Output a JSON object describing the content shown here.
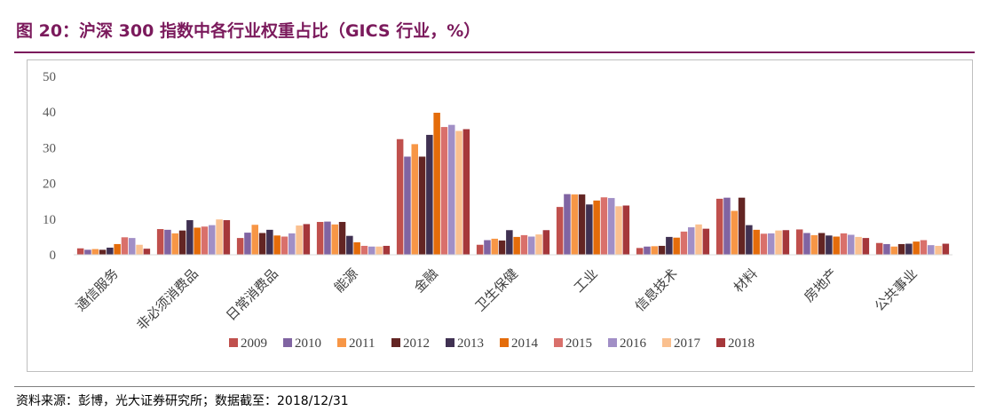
{
  "figure": {
    "title": "图 20：沪深 300 指数中各行业权重占比（GICS 行业，%）",
    "source": "资料来源：彭博，光大证券研究所；数据截至：2018/12/31"
  },
  "colors": {
    "title": "#7b1a5c",
    "series": [
      "#c0504d",
      "#8064a2",
      "#f79646",
      "#632523",
      "#403152",
      "#e46c0a",
      "#d9706b",
      "#a18fc6",
      "#fac08f",
      "#a5373a"
    ]
  },
  "chart_data": {
    "type": "bar",
    "title": "",
    "xlabel": "",
    "ylabel": "",
    "ylim": [
      0,
      50
    ],
    "yticks": [
      0,
      10,
      20,
      30,
      40,
      50
    ],
    "grid": false,
    "legend_position": "bottom",
    "categories": [
      "通信服务",
      "非必须消费品",
      "日常消费品",
      "能源",
      "金融",
      "卫生保健",
      "工业",
      "信息技术",
      "材料",
      "房地产",
      "公共事业"
    ],
    "series": [
      {
        "name": "2009",
        "values": [
          1.8,
          7.2,
          4.7,
          9.2,
          32.4,
          2.8,
          13.4,
          1.9,
          15.7,
          7.1,
          3.3
        ]
      },
      {
        "name": "2010",
        "values": [
          1.4,
          7.0,
          6.2,
          9.3,
          27.5,
          4.1,
          17.0,
          2.3,
          16.0,
          6.1,
          3.0
        ]
      },
      {
        "name": "2011",
        "values": [
          1.6,
          6.0,
          8.4,
          8.5,
          31.0,
          4.5,
          16.9,
          2.4,
          12.3,
          5.5,
          2.3
        ]
      },
      {
        "name": "2012",
        "values": [
          1.4,
          6.8,
          6.1,
          9.2,
          27.5,
          4.0,
          16.9,
          2.5,
          16.0,
          6.1,
          3.0
        ]
      },
      {
        "name": "2013",
        "values": [
          2.0,
          9.7,
          7.0,
          5.3,
          33.6,
          6.9,
          14.1,
          5.0,
          8.3,
          5.4,
          3.1
        ]
      },
      {
        "name": "2014",
        "values": [
          3.0,
          7.6,
          5.4,
          3.5,
          39.8,
          5.0,
          15.2,
          4.8,
          7.0,
          5.1,
          3.7
        ]
      },
      {
        "name": "2015",
        "values": [
          4.9,
          7.9,
          5.1,
          2.5,
          35.8,
          5.5,
          16.1,
          6.5,
          5.9,
          6.0,
          4.1
        ]
      },
      {
        "name": "2016",
        "values": [
          4.7,
          8.3,
          6.0,
          2.3,
          36.4,
          5.1,
          15.9,
          7.7,
          6.0,
          5.6,
          2.7
        ]
      },
      {
        "name": "2017",
        "values": [
          2.8,
          9.9,
          8.2,
          2.3,
          34.7,
          5.7,
          13.6,
          8.5,
          6.8,
          5.0,
          2.5
        ]
      },
      {
        "name": "2018",
        "values": [
          1.7,
          9.7,
          8.6,
          2.5,
          35.2,
          6.9,
          13.8,
          7.3,
          6.9,
          4.7,
          3.1
        ]
      }
    ]
  }
}
